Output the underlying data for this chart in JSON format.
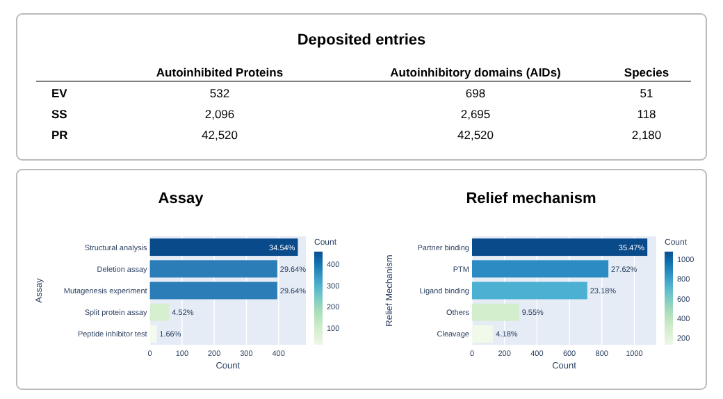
{
  "chart_data": [
    {
      "type": "other",
      "title": "Deposited entries",
      "categories": [
        "Autoinhibited Proteins",
        "Autoinhibitory domains (AIDs)",
        "Species"
      ],
      "y_categories": [
        "EV",
        "SS",
        "PR"
      ],
      "cells": [
        [
          "532",
          "698",
          "51"
        ],
        [
          "2,096",
          "2,695",
          "118"
        ],
        [
          "42,520",
          "42,520",
          "2,180"
        ]
      ]
    },
    {
      "type": "bar",
      "orientation": "horizontal",
      "title": "Assay",
      "xlabel": "Count",
      "ylabel": "Assay",
      "clabel": "Count",
      "categories": [
        "Structural analysis",
        "Deletion assay",
        "Mutagenesis experiment",
        "Split protein assay",
        "Peptide inhibitor test"
      ],
      "values": [
        460,
        396,
        396,
        60,
        21
      ],
      "colors": [
        "#084a8a",
        "#2a7db7",
        "#2a7db7",
        "#d5efcf",
        "#f4fbee"
      ],
      "annotations": [
        {
          "text": "34.54%",
          "x": 460,
          "y": "Structural analysis"
        },
        {
          "text": "29.64%",
          "x": 396,
          "y": "Deletion assay"
        },
        {
          "text": "29.64%",
          "x": 396,
          "y": "Mutagenesis experiment"
        },
        {
          "text": "4.52%",
          "x": 60,
          "y": "Split protein assay"
        },
        {
          "text": "1.66%",
          "x": 21,
          "y": "Peptide inhibitor test"
        }
      ],
      "xlim": [
        0,
        485
      ],
      "xticks": [
        0,
        100,
        200,
        300,
        400
      ],
      "grid": "x",
      "clim": [
        21,
        460
      ],
      "cticks": [
        100,
        200,
        300,
        400
      ]
    },
    {
      "type": "bar",
      "orientation": "horizontal",
      "title": "Relief mechanism",
      "xlabel": "Count",
      "ylabel": "Relief Mechanism",
      "clabel": "Count",
      "categories": [
        "Partner binding",
        "PTM",
        "Ligand binding",
        "Others",
        "Cleavage"
      ],
      "values": [
        1080,
        840,
        710,
        290,
        130
      ],
      "colors": [
        "#084a8a",
        "#2b8bc2",
        "#4cb0d2",
        "#d3eecc",
        "#f1f9ea"
      ],
      "annotations": [
        {
          "text": "35.47%",
          "x": 1080,
          "y": "Partner binding"
        },
        {
          "text": "27.62%",
          "x": 840,
          "y": "PTM"
        },
        {
          "text": "23.18%",
          "x": 710,
          "y": "Ligand binding"
        },
        {
          "text": "9.55%",
          "x": 290,
          "y": "Others"
        },
        {
          "text": "4.18%",
          "x": 130,
          "y": "Cleavage"
        }
      ],
      "xlim": [
        0,
        1135
      ],
      "xticks": [
        0,
        200,
        400,
        600,
        800,
        1000
      ],
      "grid": "x",
      "clim": [
        130,
        1080
      ],
      "cticks": [
        200,
        400,
        600,
        800,
        1000
      ]
    }
  ]
}
